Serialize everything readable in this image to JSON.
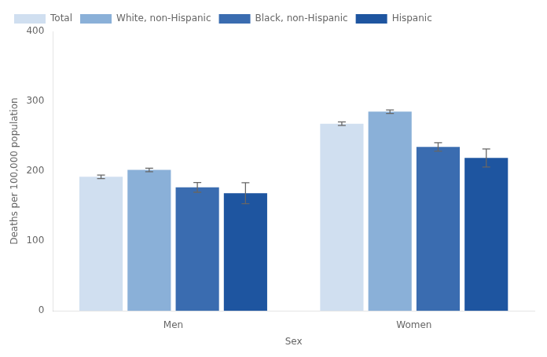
{
  "chart_data": {
    "type": "bar",
    "categories": [
      "Men",
      "Women"
    ],
    "series": [
      {
        "name": "Total",
        "color": "#d0dff0",
        "values": [
          191.9,
          267.9
        ],
        "errors": [
          2.5,
          2.5
        ]
      },
      {
        "name": "White, non-Hispanic",
        "color": "#8ab0d8",
        "values": [
          201.7,
          285.1
        ],
        "errors": [
          2.5,
          2.5
        ]
      },
      {
        "name": "Black, non-Hispanic",
        "color": "#3a6cb0",
        "values": [
          176.8,
          234.7
        ],
        "errors": [
          7.0,
          6.0
        ]
      },
      {
        "name": "Hispanic",
        "color": "#1e55a0",
        "values": [
          168.4,
          218.8
        ],
        "errors": [
          15.0,
          13.0
        ]
      }
    ],
    "xlabel": "Sex",
    "ylabel": "Deaths per 100,000 population",
    "ylim": [
      0,
      400
    ],
    "yticks": [
      0,
      100,
      200,
      300,
      400
    ],
    "grid": false,
    "legend": "upper left"
  }
}
